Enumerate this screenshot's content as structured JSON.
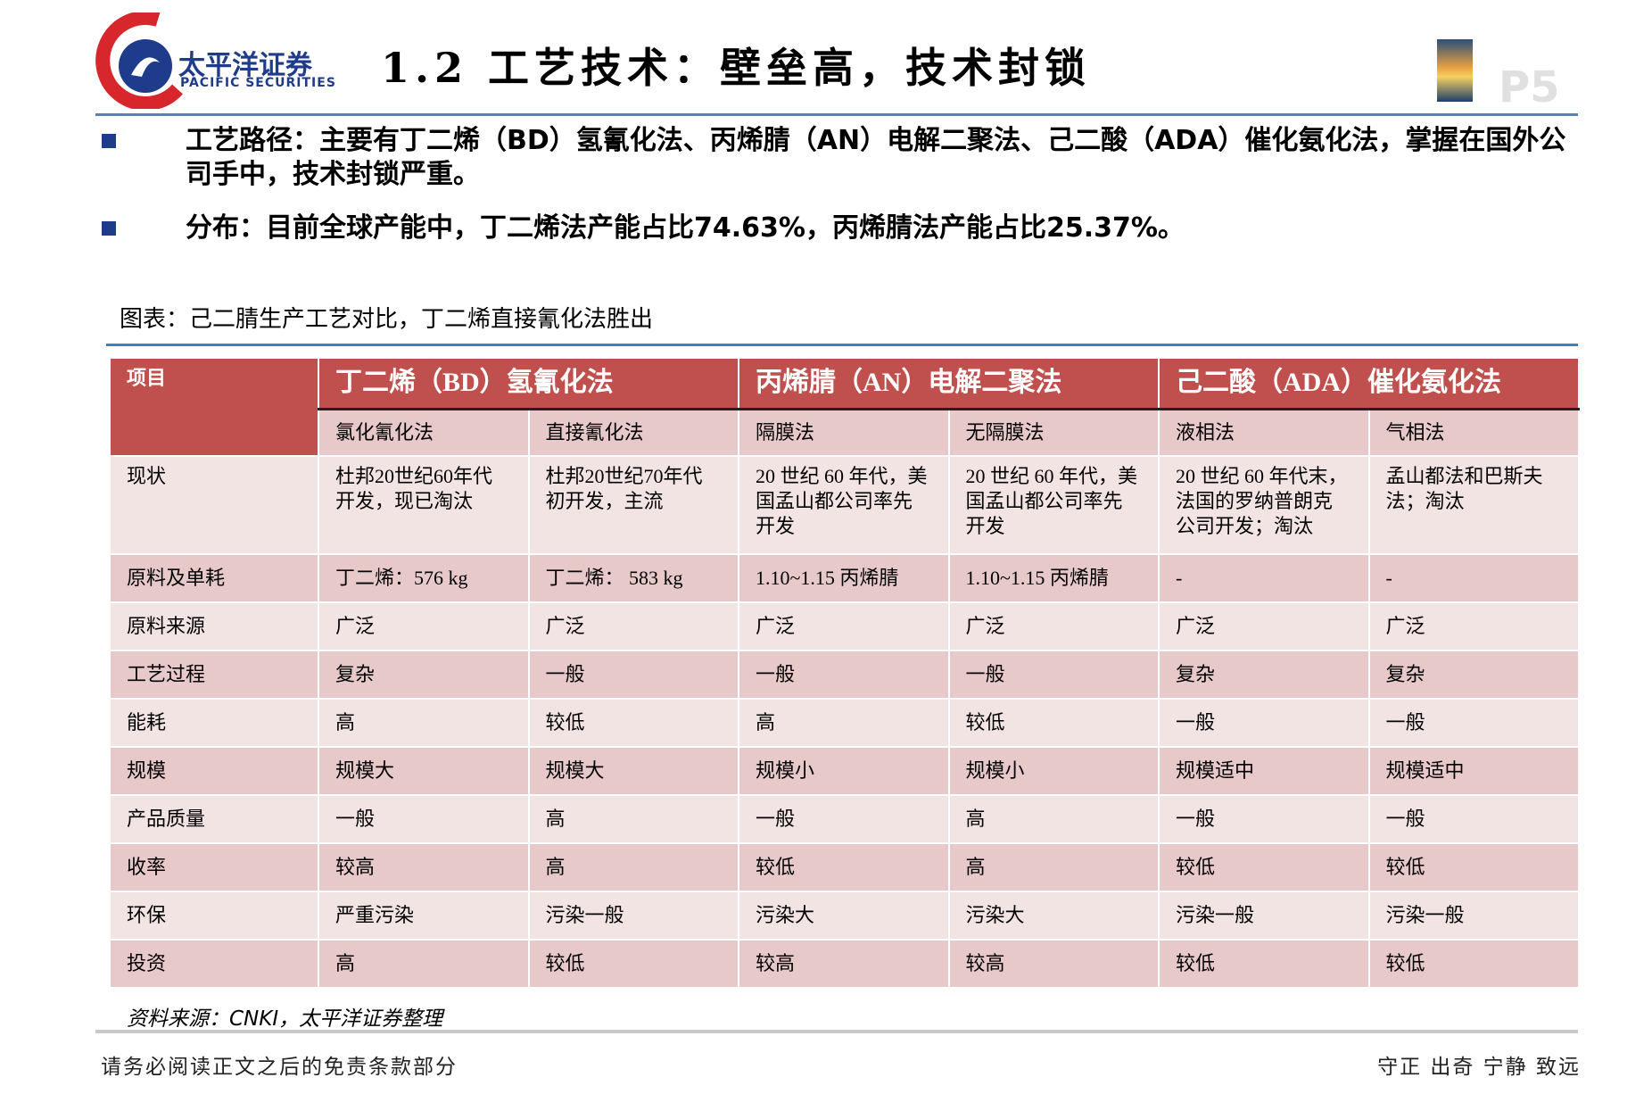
{
  "header": {
    "logo_name": "太平洋证券",
    "logo_name_en": "PACIFIC SECURITIES",
    "title": "1.2 工艺技术：壁垒高，技术封锁",
    "page": "P5"
  },
  "bullets": [
    "工艺路径：主要有丁二烯（BD）氢氰化法、丙烯腈（AN）电解二聚法、己二酸（ADA）催化氨化法，掌握在国外公司手中，技术封锁严重。",
    "分布：目前全球产能中，丁二烯法产能占比74.63%，丙烯腈法产能占比25.37%。"
  ],
  "table": {
    "caption": "图表：己二腈生产工艺对比，丁二烯直接氰化法胜出",
    "corner": "项目",
    "groups": [
      "丁二烯（BD）氢氰化法",
      "丙烯腈（AN）电解二聚法",
      "己二酸（ADA）催化氨化法"
    ],
    "methods": [
      "氯化氰化法",
      "直接氰化法",
      "隔膜法",
      "无隔膜法",
      "液相法",
      "气相法"
    ],
    "rows": [
      {
        "label": "现状",
        "cells": [
          "杜邦20世纪60年代开发，现已淘汰",
          "杜邦20世纪70年代初开发，主流",
          "20 世纪 60 年代，美国孟山都公司率先开发",
          "20 世纪 60 年代，美国孟山都公司率先开发",
          "20 世纪 60 年代末，法国的罗纳普朗克公司开发；淘汰",
          "孟山都法和巴斯夫法；淘汰"
        ]
      },
      {
        "label": "原料及单耗",
        "cells": [
          "丁二烯：576 kg",
          "丁二烯： 583 kg",
          "1.10~1.15 丙烯腈",
          "1.10~1.15 丙烯腈",
          "-",
          "-"
        ]
      },
      {
        "label": "原料来源",
        "cells": [
          "广泛",
          "广泛",
          "广泛",
          "广泛",
          "广泛",
          "广泛"
        ]
      },
      {
        "label": "工艺过程",
        "cells": [
          "复杂",
          "一般",
          "一般",
          "一般",
          "复杂",
          "复杂"
        ]
      },
      {
        "label": "能耗",
        "cells": [
          "高",
          "较低",
          "高",
          "较低",
          "一般",
          "一般"
        ]
      },
      {
        "label": "规模",
        "cells": [
          "规模大",
          "规模大",
          "规模小",
          "规模小",
          "规模适中",
          "规模适中"
        ]
      },
      {
        "label": "产品质量",
        "cells": [
          "一般",
          "高",
          "一般",
          "高",
          "一般",
          "一般"
        ]
      },
      {
        "label": "收率",
        "cells": [
          "较高",
          "高",
          "较低",
          "高",
          "较低",
          "较低"
        ]
      },
      {
        "label": "环保",
        "cells": [
          "严重污染",
          "污染一般",
          "污染大",
          "污染大",
          "污染一般",
          "污染一般"
        ]
      },
      {
        "label": "投资",
        "cells": [
          "高",
          "较低",
          "较高",
          "较高",
          "较低",
          "较低"
        ]
      }
    ]
  },
  "source": "资料来源：CNKI，太平洋证券整理",
  "footer": {
    "disclaimer": "请务必阅读正文之后的免责条款部分",
    "motto": "守正 出奇 宁静 致远"
  }
}
